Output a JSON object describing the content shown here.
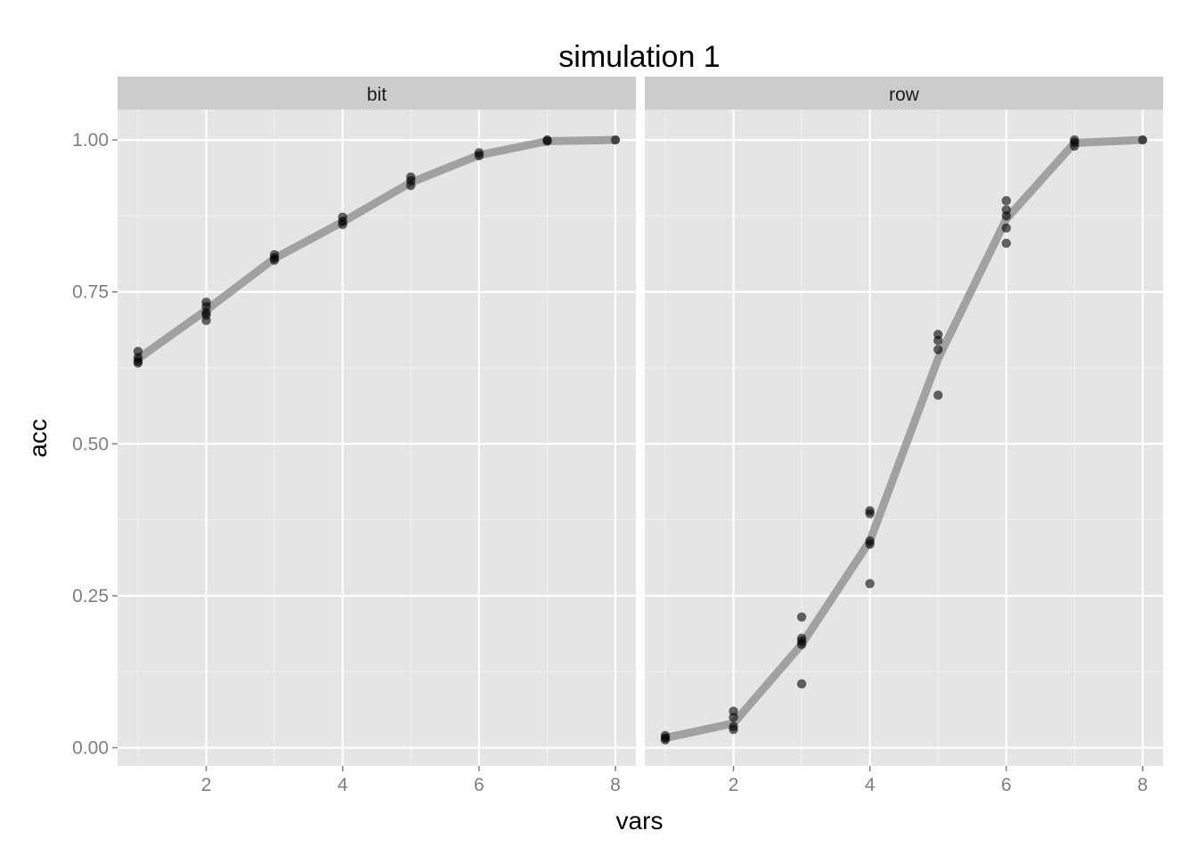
{
  "chart_data": {
    "type": "scatter",
    "title": "simulation 1",
    "xlabel": "vars",
    "ylabel": "acc",
    "xlim": [
      0.7,
      8.3
    ],
    "ylim": [
      -0.03,
      1.05
    ],
    "x_ticks": [
      2,
      4,
      6,
      8
    ],
    "y_ticks": [
      0.0,
      0.25,
      0.5,
      0.75,
      1.0
    ],
    "y_tick_labels": [
      "0.00",
      "0.25",
      "0.50",
      "0.75",
      "1.00"
    ],
    "grid": true,
    "colors": {
      "panel_bg": "#e5e5e5",
      "strip_bg": "#cccccc",
      "grid": "#ffffff",
      "point": "#000000",
      "line": "#999999"
    },
    "panels": [
      {
        "label": "bit",
        "points": [
          {
            "x": 1,
            "y": 0.652
          },
          {
            "x": 1,
            "y": 0.642
          },
          {
            "x": 1,
            "y": 0.636
          },
          {
            "x": 1,
            "y": 0.633
          },
          {
            "x": 2,
            "y": 0.733
          },
          {
            "x": 2,
            "y": 0.726
          },
          {
            "x": 2,
            "y": 0.716
          },
          {
            "x": 2,
            "y": 0.712
          },
          {
            "x": 2,
            "y": 0.703
          },
          {
            "x": 3,
            "y": 0.811
          },
          {
            "x": 3,
            "y": 0.806
          },
          {
            "x": 3,
            "y": 0.802
          },
          {
            "x": 4,
            "y": 0.873
          },
          {
            "x": 4,
            "y": 0.866
          },
          {
            "x": 4,
            "y": 0.861
          },
          {
            "x": 5,
            "y": 0.939
          },
          {
            "x": 5,
            "y": 0.933
          },
          {
            "x": 5,
            "y": 0.925
          },
          {
            "x": 6,
            "y": 0.979
          },
          {
            "x": 6,
            "y": 0.974
          },
          {
            "x": 7,
            "y": 1.0
          },
          {
            "x": 7,
            "y": 0.998
          },
          {
            "x": 8,
            "y": 1.0
          }
        ],
        "trend": [
          {
            "x": 1,
            "y": 0.64
          },
          {
            "x": 2,
            "y": 0.72
          },
          {
            "x": 3,
            "y": 0.805
          },
          {
            "x": 4,
            "y": 0.865
          },
          {
            "x": 5,
            "y": 0.93
          },
          {
            "x": 6,
            "y": 0.975
          },
          {
            "x": 7,
            "y": 0.998
          },
          {
            "x": 8,
            "y": 1.0
          }
        ]
      },
      {
        "label": "row",
        "points": [
          {
            "x": 1,
            "y": 0.02
          },
          {
            "x": 1,
            "y": 0.016
          },
          {
            "x": 1,
            "y": 0.013
          },
          {
            "x": 2,
            "y": 0.06
          },
          {
            "x": 2,
            "y": 0.05
          },
          {
            "x": 2,
            "y": 0.035
          },
          {
            "x": 2,
            "y": 0.03
          },
          {
            "x": 3,
            "y": 0.215
          },
          {
            "x": 3,
            "y": 0.18
          },
          {
            "x": 3,
            "y": 0.175
          },
          {
            "x": 3,
            "y": 0.17
          },
          {
            "x": 3,
            "y": 0.105
          },
          {
            "x": 4,
            "y": 0.39
          },
          {
            "x": 4,
            "y": 0.385
          },
          {
            "x": 4,
            "y": 0.34
          },
          {
            "x": 4,
            "y": 0.335
          },
          {
            "x": 4,
            "y": 0.27
          },
          {
            "x": 5,
            "y": 0.68
          },
          {
            "x": 5,
            "y": 0.67
          },
          {
            "x": 5,
            "y": 0.655
          },
          {
            "x": 5,
            "y": 0.58
          },
          {
            "x": 6,
            "y": 0.9
          },
          {
            "x": 6,
            "y": 0.885
          },
          {
            "x": 6,
            "y": 0.875
          },
          {
            "x": 6,
            "y": 0.855
          },
          {
            "x": 6,
            "y": 0.83
          },
          {
            "x": 7,
            "y": 1.0
          },
          {
            "x": 7,
            "y": 0.996
          },
          {
            "x": 7,
            "y": 0.99
          },
          {
            "x": 8,
            "y": 1.0
          }
        ],
        "trend": [
          {
            "x": 1,
            "y": 0.016
          },
          {
            "x": 2,
            "y": 0.04
          },
          {
            "x": 3,
            "y": 0.17
          },
          {
            "x": 4,
            "y": 0.34
          },
          {
            "x": 5,
            "y": 0.64
          },
          {
            "x": 6,
            "y": 0.87
          },
          {
            "x": 7,
            "y": 0.995
          },
          {
            "x": 8,
            "y": 1.0
          }
        ]
      }
    ]
  }
}
